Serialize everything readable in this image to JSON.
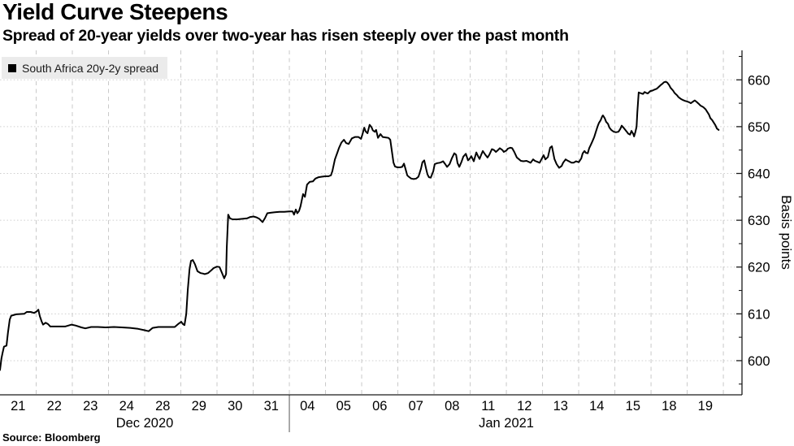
{
  "header": {
    "title": "Yield Curve Steepens",
    "subtitle": "Spread of 20-year yields over two-year has risen steeply over the past month"
  },
  "legend": {
    "label": "South Africa 20y-2y spread",
    "marker_color": "#000000"
  },
  "source": "Source: Bloomberg",
  "colors": {
    "line": "#000000",
    "grid": "#c9c9c9",
    "axis": "#1a1a1a",
    "legend_bg": "#ebebeb",
    "month_separator": "#555555"
  },
  "chart_data": {
    "type": "line",
    "title": "Yield Curve Steepens",
    "subtitle": "Spread of 20-year yields over two-year has risen steeply over the past month",
    "ylabel": "Basis points",
    "xlabel": "",
    "x_unit": "trading-day index (integer i = center of i-th x tick label)",
    "x_tick_labels": [
      "21",
      "22",
      "23",
      "24",
      "28",
      "29",
      "30",
      "31",
      "04",
      "05",
      "06",
      "07",
      "08",
      "11",
      "12",
      "13",
      "14",
      "15",
      "18",
      "19"
    ],
    "x_month_labels": [
      {
        "label": "Dec 2020",
        "at": 3.5
      },
      {
        "label": "Jan 2021",
        "at": 13.5
      }
    ],
    "month_separator_at": 7.5,
    "xlim": [
      -0.5,
      20.015
    ],
    "ylim": [
      592.7,
      666.3
    ],
    "y_ticks": [
      600,
      610,
      620,
      630,
      640,
      650,
      660
    ],
    "y_minor_ticks": [
      595,
      605,
      615,
      625,
      635,
      645,
      655,
      665
    ],
    "grid": {
      "horizontal": "dotted",
      "vertical": "dashed",
      "legend_position": "top-left",
      "y_axis_side": "right"
    },
    "series": [
      {
        "name": "South Africa 20y-2y spread",
        "color": "#000000",
        "points": [
          [
            -0.5,
            598.0
          ],
          [
            -0.46,
            600.5
          ],
          [
            -0.43,
            601.6
          ],
          [
            -0.39,
            603.0
          ],
          [
            -0.32,
            603.2
          ],
          [
            -0.28,
            606.0
          ],
          [
            -0.23,
            608.8
          ],
          [
            -0.19,
            609.6
          ],
          [
            -0.05,
            609.9
          ],
          [
            0.17,
            610.0
          ],
          [
            0.24,
            610.4
          ],
          [
            0.35,
            610.4
          ],
          [
            0.44,
            610.2
          ],
          [
            0.51,
            610.5
          ],
          [
            0.56,
            610.9
          ],
          [
            0.6,
            609.5
          ],
          [
            0.65,
            608.4
          ],
          [
            0.69,
            607.7
          ],
          [
            0.76,
            608.1
          ],
          [
            0.83,
            607.8
          ],
          [
            0.89,
            607.3
          ],
          [
            1.07,
            607.3
          ],
          [
            1.3,
            607.3
          ],
          [
            1.48,
            607.7
          ],
          [
            1.59,
            607.5
          ],
          [
            1.75,
            607.1
          ],
          [
            1.86,
            606.9
          ],
          [
            2.02,
            607.2
          ],
          [
            2.2,
            607.2
          ],
          [
            2.42,
            607.1
          ],
          [
            2.65,
            607.2
          ],
          [
            2.87,
            607.1
          ],
          [
            3.1,
            607.0
          ],
          [
            3.32,
            606.8
          ],
          [
            3.5,
            606.5
          ],
          [
            3.61,
            606.3
          ],
          [
            3.72,
            607.0
          ],
          [
            3.88,
            607.2
          ],
          [
            4.11,
            607.2
          ],
          [
            4.33,
            607.2
          ],
          [
            4.44,
            607.9
          ],
          [
            4.51,
            608.3
          ],
          [
            4.56,
            607.8
          ],
          [
            4.6,
            607.6
          ],
          [
            4.65,
            610.0
          ],
          [
            4.69,
            615.0
          ],
          [
            4.74,
            619.5
          ],
          [
            4.78,
            621.3
          ],
          [
            4.83,
            621.5
          ],
          [
            4.89,
            620.6
          ],
          [
            4.96,
            619.1
          ],
          [
            5.05,
            618.7
          ],
          [
            5.12,
            618.6
          ],
          [
            5.16,
            618.5
          ],
          [
            5.25,
            618.7
          ],
          [
            5.34,
            619.3
          ],
          [
            5.41,
            619.8
          ],
          [
            5.5,
            620.1
          ],
          [
            5.57,
            620.0
          ],
          [
            5.63,
            618.9
          ],
          [
            5.7,
            617.6
          ],
          [
            5.75,
            618.5
          ],
          [
            5.77,
            624.0
          ],
          [
            5.81,
            631.2
          ],
          [
            5.86,
            630.4
          ],
          [
            5.93,
            630.2
          ],
          [
            6.06,
            630.2
          ],
          [
            6.2,
            630.3
          ],
          [
            6.33,
            630.4
          ],
          [
            6.42,
            630.7
          ],
          [
            6.51,
            630.8
          ],
          [
            6.6,
            630.6
          ],
          [
            6.67,
            630.3
          ],
          [
            6.76,
            629.6
          ],
          [
            6.83,
            630.5
          ],
          [
            6.89,
            631.5
          ],
          [
            6.98,
            631.6
          ],
          [
            7.1,
            631.7
          ],
          [
            7.23,
            631.8
          ],
          [
            7.36,
            631.8
          ],
          [
            7.5,
            631.9
          ],
          [
            7.59,
            631.9
          ],
          [
            7.63,
            631.2
          ],
          [
            7.68,
            632.3
          ],
          [
            7.72,
            631.5
          ],
          [
            7.77,
            632.0
          ],
          [
            7.81,
            633.0
          ],
          [
            7.88,
            635.6
          ],
          [
            7.93,
            635.0
          ],
          [
            7.99,
            637.6
          ],
          [
            8.06,
            638.2
          ],
          [
            8.15,
            638.3
          ],
          [
            8.22,
            638.9
          ],
          [
            8.31,
            639.2
          ],
          [
            8.4,
            639.3
          ],
          [
            8.49,
            639.4
          ],
          [
            8.58,
            639.4
          ],
          [
            8.65,
            639.6
          ],
          [
            8.69,
            640.5
          ],
          [
            8.76,
            643.0
          ],
          [
            8.83,
            644.5
          ],
          [
            8.87,
            645.4
          ],
          [
            8.94,
            646.6
          ],
          [
            9.01,
            647.2
          ],
          [
            9.07,
            646.5
          ],
          [
            9.14,
            646.3
          ],
          [
            9.23,
            647.5
          ],
          [
            9.32,
            647.8
          ],
          [
            9.41,
            647.8
          ],
          [
            9.48,
            647.4
          ],
          [
            9.52,
            648.3
          ],
          [
            9.57,
            649.8
          ],
          [
            9.61,
            649.0
          ],
          [
            9.66,
            648.6
          ],
          [
            9.72,
            650.4
          ],
          [
            9.77,
            649.9
          ],
          [
            9.81,
            649.2
          ],
          [
            9.86,
            648.9
          ],
          [
            9.9,
            649.3
          ],
          [
            9.95,
            647.6
          ],
          [
            10.02,
            648.4
          ],
          [
            10.08,
            647.8
          ],
          [
            10.17,
            647.7
          ],
          [
            10.24,
            647.6
          ],
          [
            10.29,
            647.2
          ],
          [
            10.33,
            645.0
          ],
          [
            10.38,
            642.3
          ],
          [
            10.42,
            641.5
          ],
          [
            10.49,
            641.3
          ],
          [
            10.56,
            641.3
          ],
          [
            10.62,
            641.4
          ],
          [
            10.67,
            642.1
          ],
          [
            10.71,
            641.0
          ],
          [
            10.76,
            639.6
          ],
          [
            10.8,
            639.3
          ],
          [
            10.87,
            638.9
          ],
          [
            10.94,
            638.8
          ],
          [
            11.01,
            638.9
          ],
          [
            11.07,
            639.3
          ],
          [
            11.14,
            641.0
          ],
          [
            11.18,
            642.4
          ],
          [
            11.23,
            642.8
          ],
          [
            11.28,
            641.0
          ],
          [
            11.32,
            639.8
          ],
          [
            11.36,
            639.2
          ],
          [
            11.41,
            639.1
          ],
          [
            11.48,
            640.5
          ],
          [
            11.52,
            642.0
          ],
          [
            11.59,
            642.2
          ],
          [
            11.66,
            642.3
          ],
          [
            11.7,
            642.4
          ],
          [
            11.75,
            642.6
          ],
          [
            11.81,
            642.0
          ],
          [
            11.86,
            641.4
          ],
          [
            11.93,
            642.0
          ],
          [
            11.99,
            643.2
          ],
          [
            12.06,
            644.3
          ],
          [
            12.11,
            644.0
          ],
          [
            12.15,
            642.2
          ],
          [
            12.2,
            641.4
          ],
          [
            12.26,
            642.5
          ],
          [
            12.31,
            643.6
          ],
          [
            12.38,
            644.2
          ],
          [
            12.44,
            642.8
          ],
          [
            12.49,
            643.2
          ],
          [
            12.53,
            643.7
          ],
          [
            12.6,
            642.6
          ],
          [
            12.67,
            644.5
          ],
          [
            12.71,
            643.8
          ],
          [
            12.76,
            643.1
          ],
          [
            12.8,
            643.9
          ],
          [
            12.85,
            644.8
          ],
          [
            12.92,
            644.0
          ],
          [
            12.98,
            643.4
          ],
          [
            13.03,
            644.0
          ],
          [
            13.1,
            645.2
          ],
          [
            13.16,
            645.0
          ],
          [
            13.21,
            644.6
          ],
          [
            13.27,
            645.0
          ],
          [
            13.32,
            645.4
          ],
          [
            13.39,
            645.0
          ],
          [
            13.43,
            644.6
          ],
          [
            13.5,
            644.9
          ],
          [
            13.54,
            645.3
          ],
          [
            13.61,
            645.5
          ],
          [
            13.66,
            645.4
          ],
          [
            13.72,
            644.6
          ],
          [
            13.79,
            643.4
          ],
          [
            13.84,
            643.1
          ],
          [
            13.9,
            642.7
          ],
          [
            13.97,
            642.6
          ],
          [
            14.06,
            642.7
          ],
          [
            14.11,
            642.5
          ],
          [
            14.17,
            642.3
          ],
          [
            14.24,
            643.0
          ],
          [
            14.29,
            642.7
          ],
          [
            14.35,
            642.5
          ],
          [
            14.42,
            642.3
          ],
          [
            14.49,
            643.3
          ],
          [
            14.53,
            643.9
          ],
          [
            14.58,
            643.0
          ],
          [
            14.65,
            643.5
          ],
          [
            14.71,
            645.5
          ],
          [
            14.76,
            645.8
          ],
          [
            14.83,
            643.1
          ],
          [
            14.89,
            642.0
          ],
          [
            14.96,
            641.2
          ],
          [
            15.03,
            641.6
          ],
          [
            15.07,
            642.3
          ],
          [
            15.14,
            643.0
          ],
          [
            15.18,
            642.8
          ],
          [
            15.23,
            642.6
          ],
          [
            15.3,
            642.3
          ],
          [
            15.36,
            642.3
          ],
          [
            15.43,
            642.6
          ],
          [
            15.5,
            642.4
          ],
          [
            15.57,
            643.2
          ],
          [
            15.61,
            644.3
          ],
          [
            15.66,
            644.8
          ],
          [
            15.7,
            644.4
          ],
          [
            15.75,
            644.3
          ],
          [
            15.79,
            645.4
          ],
          [
            15.84,
            646.2
          ],
          [
            15.88,
            646.9
          ],
          [
            15.93,
            647.8
          ],
          [
            15.97,
            648.8
          ],
          [
            16.02,
            650.0
          ],
          [
            16.06,
            650.8
          ],
          [
            16.11,
            651.4
          ],
          [
            16.15,
            652.2
          ],
          [
            16.17,
            652.4
          ],
          [
            16.22,
            651.8
          ],
          [
            16.26,
            651.0
          ],
          [
            16.31,
            650.6
          ],
          [
            16.35,
            649.8
          ],
          [
            16.4,
            649.3
          ],
          [
            16.47,
            648.9
          ],
          [
            16.53,
            648.8
          ],
          [
            16.6,
            648.9
          ],
          [
            16.65,
            649.5
          ],
          [
            16.69,
            650.2
          ],
          [
            16.74,
            649.8
          ],
          [
            16.78,
            649.4
          ],
          [
            16.83,
            648.9
          ],
          [
            16.87,
            648.5
          ],
          [
            16.92,
            648.3
          ],
          [
            16.96,
            649.1
          ],
          [
            17.01,
            648.4
          ],
          [
            17.03,
            647.9
          ],
          [
            17.07,
            648.9
          ],
          [
            17.1,
            650.0
          ],
          [
            17.12,
            653.0
          ],
          [
            17.16,
            657.3
          ],
          [
            17.23,
            657.1
          ],
          [
            17.28,
            657.0
          ],
          [
            17.32,
            657.4
          ],
          [
            17.37,
            657.2
          ],
          [
            17.41,
            657.1
          ],
          [
            17.48,
            657.6
          ],
          [
            17.54,
            657.7
          ],
          [
            17.59,
            657.9
          ],
          [
            17.66,
            658.1
          ],
          [
            17.7,
            658.4
          ],
          [
            17.77,
            658.9
          ],
          [
            17.82,
            659.2
          ],
          [
            17.86,
            659.5
          ],
          [
            17.91,
            659.6
          ],
          [
            17.95,
            659.4
          ],
          [
            18.0,
            658.9
          ],
          [
            18.04,
            658.3
          ],
          [
            18.11,
            657.7
          ],
          [
            18.15,
            657.2
          ],
          [
            18.22,
            656.7
          ],
          [
            18.26,
            656.3
          ],
          [
            18.33,
            655.9
          ],
          [
            18.38,
            655.7
          ],
          [
            18.44,
            655.5
          ],
          [
            18.49,
            655.4
          ],
          [
            18.56,
            655.2
          ],
          [
            18.6,
            655.0
          ],
          [
            18.67,
            655.4
          ],
          [
            18.71,
            655.6
          ],
          [
            18.76,
            655.3
          ],
          [
            18.83,
            654.8
          ],
          [
            18.87,
            654.5
          ],
          [
            18.94,
            654.2
          ],
          [
            19.01,
            653.7
          ],
          [
            19.05,
            653.2
          ],
          [
            19.1,
            652.6
          ],
          [
            19.14,
            651.8
          ],
          [
            19.19,
            651.4
          ],
          [
            19.23,
            650.9
          ],
          [
            19.28,
            650.3
          ],
          [
            19.32,
            649.6
          ],
          [
            19.37,
            649.3
          ]
        ]
      }
    ]
  }
}
